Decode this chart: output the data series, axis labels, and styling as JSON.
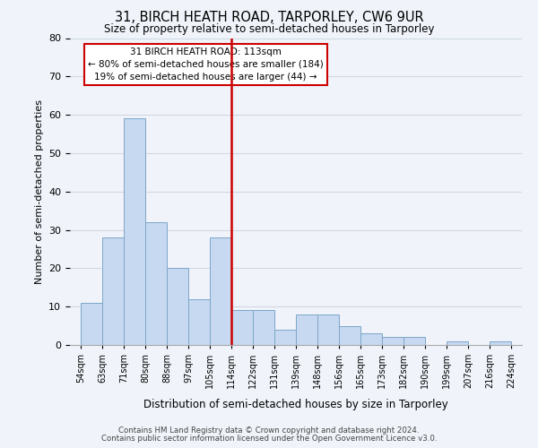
{
  "title": "31, BIRCH HEATH ROAD, TARPORLEY, CW6 9UR",
  "subtitle": "Size of property relative to semi-detached houses in Tarporley",
  "xlabel": "Distribution of semi-detached houses by size in Tarporley",
  "ylabel": "Number of semi-detached properties",
  "bin_labels": [
    "54sqm",
    "63sqm",
    "71sqm",
    "80sqm",
    "88sqm",
    "97sqm",
    "105sqm",
    "114sqm",
    "122sqm",
    "131sqm",
    "139sqm",
    "148sqm",
    "156sqm",
    "165sqm",
    "173sqm",
    "182sqm",
    "190sqm",
    "199sqm",
    "207sqm",
    "216sqm",
    "224sqm"
  ],
  "bar_values": [
    11,
    28,
    59,
    32,
    20,
    12,
    28,
    9,
    9,
    4,
    8,
    8,
    5,
    3,
    2,
    2,
    0,
    1,
    0,
    1
  ],
  "bar_color": "#c6d9f0",
  "bar_edge_color": "#7da6c8",
  "grid_color": "#d0d8e4",
  "property_line_label_idx": 7,
  "property_sqm": 113,
  "property_label": "31 BIRCH HEATH ROAD: 113sqm",
  "pct_smaller": 80,
  "count_smaller": 184,
  "pct_larger": 19,
  "count_larger": 44,
  "line_color": "#cc0000",
  "box_color": "#ffffff",
  "box_edge_color": "#cc0000",
  "ylim": [
    0,
    80
  ],
  "yticks": [
    0,
    10,
    20,
    30,
    40,
    50,
    60,
    70,
    80
  ],
  "footnote1": "Contains HM Land Registry data © Crown copyright and database right 2024.",
  "footnote2": "Contains public sector information licensed under the Open Government Licence v3.0.",
  "background_color": "#f0f4fa"
}
